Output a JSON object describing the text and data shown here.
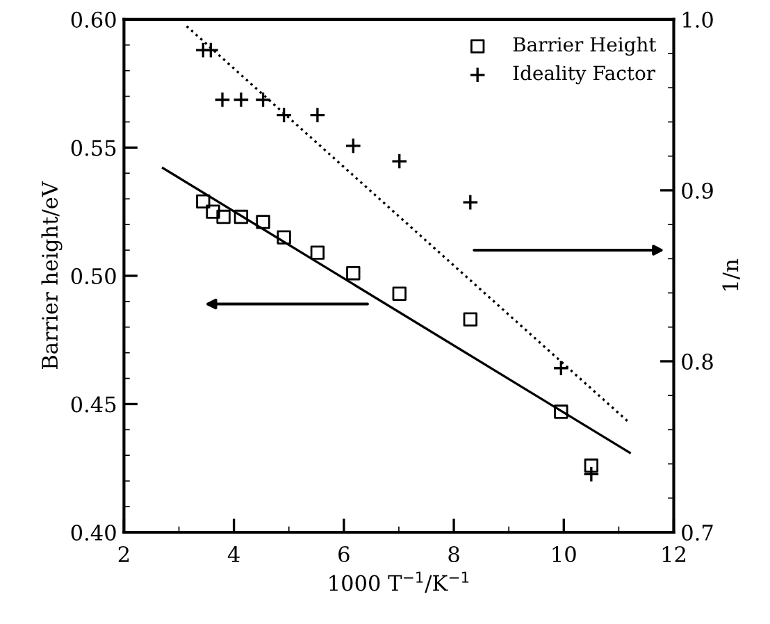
{
  "chart_data": {
    "type": "scatter",
    "xlabel": "1000 T$^{−1}$/K$^{−1}$",
    "ylabel": "Barrier height/eV",
    "y2label": "1/n",
    "xlim": [
      2,
      12
    ],
    "xticks": [
      2,
      4,
      6,
      8,
      10,
      12
    ],
    "ylim": [
      0.4,
      0.6
    ],
    "yticks": [
      {
        "value": 0.4,
        "label": "0.40"
      },
      {
        "value": 0.45,
        "label": "0.45"
      },
      {
        "value": 0.5,
        "label": "0.50"
      },
      {
        "value": 0.55,
        "label": "0.55"
      },
      {
        "value": 0.6,
        "label": "0.60"
      }
    ],
    "y2lim": [
      0.7,
      1.0
    ],
    "y2ticks": [
      0.7,
      0.8,
      0.9,
      {
        "value": 1.0,
        "label": "1.0"
      }
    ],
    "legend": "top right",
    "grid": false,
    "series": [
      {
        "name": "Barrier Height",
        "marker": "square",
        "color": "#000000",
        "x": [
          3.44,
          3.62,
          3.81,
          4.13,
          4.53,
          4.91,
          5.52,
          6.17,
          7.01,
          8.3,
          9.95,
          10.5
        ],
        "values": [
          0.529,
          0.525,
          0.523,
          0.523,
          0.521,
          0.515,
          0.509,
          0.501,
          0.493,
          0.483,
          0.447,
          0.426
        ]
      },
      {
        "name": "Ideality Factor",
        "marker": "cross",
        "color": "#000000",
        "axis": "y2",
        "x": [
          3.44,
          3.58,
          3.79,
          4.13,
          4.53,
          4.91,
          5.52,
          6.17,
          7.01,
          8.3,
          9.95,
          10.5
        ],
        "values": [
          0.982,
          0.982,
          0.953,
          0.953,
          0.953,
          0.944,
          0.944,
          0.926,
          0.917,
          0.893,
          0.796,
          0.734
        ]
      },
      {
        "type": "line",
        "line_style": "solid",
        "color": "#000000",
        "x": [
          2.71,
          11.2
        ],
        "values": [
          0.542,
          0.431
        ]
      },
      {
        "type": "line",
        "line_style": "dotted",
        "color": "#000000",
        "axis": "y2",
        "x": [
          3.14,
          11.16
        ],
        "values": [
          0.996,
          0.765
        ]
      }
    ]
  }
}
